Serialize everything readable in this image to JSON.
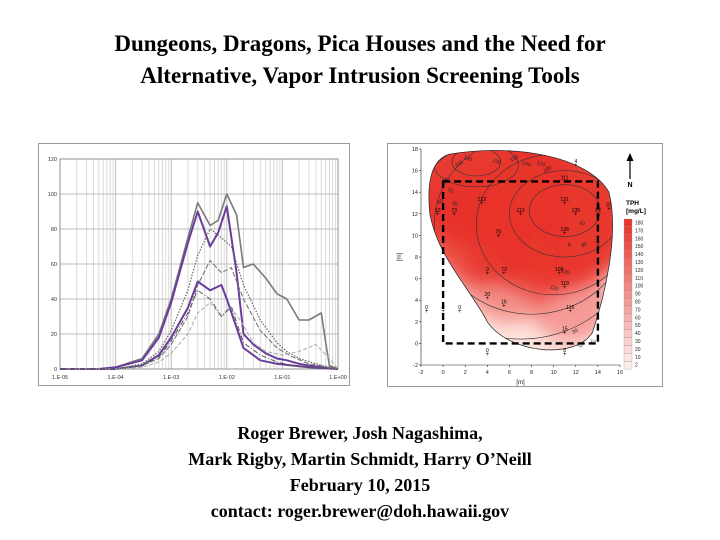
{
  "slide": {
    "title_line1": "Dungeons, Dragons, Pica Houses and the Need for",
    "title_line2": "Alternative, Vapor Intrusion Screening Tools",
    "authors_line1": "Roger Brewer, Josh Nagashima,",
    "authors_line2": "Mark Rigby, Martin Schmidt, Harry O’Neill",
    "date": "February 10, 2015",
    "contact": "contact: roger.brewer@doh.hawaii.gov"
  },
  "chart_data": [
    {
      "type": "line",
      "x_scale": "log",
      "xlim": [
        1e-05,
        1
      ],
      "ylim": [
        0,
        120
      ],
      "x_ticks": [
        "1.E-05",
        "1.E-04",
        "1.E-03",
        "1.E-02",
        "1.E-01",
        "1.E+00"
      ],
      "y_ticks": [
        "0",
        "20",
        "40",
        "60",
        "80",
        "100",
        "120"
      ],
      "grid": true,
      "legend": "none",
      "colors": {
        "purple": "#6a3d9a",
        "gray": "#7a7a7a",
        "light": "#b0b0b0"
      },
      "series": [
        {
          "style": "gray-solid",
          "x": [
            1e-05,
            5e-05,
            0.0001,
            0.0003,
            0.0006,
            0.001,
            0.002,
            0.003,
            0.005,
            0.007,
            0.01,
            0.015,
            0.02,
            0.03,
            0.05,
            0.08,
            0.12,
            0.2,
            0.3,
            0.5,
            0.6,
            0.7,
            1
          ],
          "y": [
            0,
            0,
            1,
            6,
            20,
            40,
            75,
            95,
            82,
            85,
            100,
            88,
            58,
            60,
            52,
            43,
            40,
            28,
            28,
            32,
            15,
            2,
            0
          ]
        },
        {
          "style": "purple-solid",
          "x": [
            1e-05,
            5e-05,
            0.0001,
            0.0003,
            0.0006,
            0.001,
            0.002,
            0.003,
            0.005,
            0.007,
            0.01,
            0.015,
            0.02,
            0.03,
            0.05,
            0.08,
            0.12,
            0.2,
            0.3,
            0.5,
            1
          ],
          "y": [
            0,
            0,
            1,
            5,
            18,
            38,
            72,
            90,
            70,
            78,
            93,
            55,
            20,
            14,
            9,
            6,
            5,
            3,
            2,
            1,
            0
          ]
        },
        {
          "style": "purple-solid",
          "x": [
            1e-05,
            0.0001,
            0.0003,
            0.0006,
            0.001,
            0.002,
            0.003,
            0.005,
            0.008,
            0.01,
            0.02,
            0.04,
            0.08,
            0.15,
            0.3,
            1
          ],
          "y": [
            0,
            0,
            2,
            8,
            18,
            35,
            50,
            45,
            48,
            40,
            12,
            5,
            3,
            2,
            1,
            0
          ]
        },
        {
          "style": "gray-dotted",
          "x": [
            1e-05,
            0.0001,
            0.0003,
            0.0006,
            0.001,
            0.002,
            0.003,
            0.005,
            0.008,
            0.012,
            0.02,
            0.04,
            0.08,
            0.12,
            0.2,
            0.4,
            0.7,
            1
          ],
          "y": [
            0,
            0,
            3,
            10,
            22,
            45,
            65,
            80,
            75,
            70,
            48,
            28,
            15,
            10,
            6,
            3,
            1,
            0
          ]
        },
        {
          "style": "gray-dashed",
          "x": [
            1e-05,
            0.0001,
            0.0003,
            0.0006,
            0.001,
            0.002,
            0.003,
            0.005,
            0.008,
            0.012,
            0.02,
            0.04,
            0.08,
            0.15,
            0.3,
            1
          ],
          "y": [
            0,
            0,
            2,
            6,
            14,
            30,
            48,
            62,
            55,
            58,
            40,
            22,
            12,
            7,
            3,
            0
          ]
        },
        {
          "style": "light-dashed",
          "x": [
            1e-05,
            0.0001,
            0.0003,
            0.0006,
            0.001,
            0.002,
            0.003,
            0.005,
            0.008,
            0.012,
            0.02,
            0.03,
            0.05,
            0.1,
            0.2,
            0.4,
            0.7,
            1
          ],
          "y": [
            0,
            0,
            1,
            4,
            9,
            20,
            32,
            38,
            30,
            35,
            25,
            15,
            10,
            8,
            10,
            14,
            6,
            0
          ]
        },
        {
          "style": "gray-dashdot",
          "x": [
            1e-05,
            0.0001,
            0.0003,
            0.0006,
            0.001,
            0.002,
            0.003,
            0.005,
            0.008,
            0.012,
            0.02,
            0.04,
            0.08,
            0.15,
            0.3,
            1
          ],
          "y": [
            0,
            0,
            2,
            7,
            16,
            32,
            45,
            40,
            30,
            36,
            15,
            8,
            4,
            2,
            1,
            0
          ]
        }
      ]
    },
    {
      "type": "heatmap",
      "xlabel": "[m]",
      "ylabel": "[m]",
      "xlim": [
        -2,
        16
      ],
      "ylim": [
        -2,
        18
      ],
      "x_ticks": [
        "-2",
        "0",
        "2",
        "4",
        "6",
        "8",
        "10",
        "12",
        "14",
        "16"
      ],
      "y_ticks": [
        "-2",
        "0",
        "2",
        "4",
        "6",
        "8",
        "10",
        "12",
        "14",
        "16",
        "18"
      ],
      "legend_title_1": "TPH",
      "legend_title_2": "[mg/L]",
      "north_label": "N",
      "legend_values": [
        "180",
        "170",
        "160",
        "150",
        "140",
        "130",
        "120",
        "110",
        "100",
        "90",
        "80",
        "70",
        "60",
        "50",
        "40",
        "30",
        "20",
        "10",
        "2"
      ],
      "colors": {
        "high": "#e8342c",
        "low": "#fde4de",
        "boundary": "#222222"
      },
      "hot_spots": [
        {
          "x": 3,
          "y": 16.8,
          "value": 180
        },
        {
          "x": 11,
          "y": 12.4,
          "value": 160
        },
        {
          "x": 9,
          "y": 11,
          "value": 140
        },
        {
          "x": 5,
          "y": 11.5,
          "value": 120
        },
        {
          "x": 2.5,
          "y": 10,
          "value": 90
        },
        {
          "x": 6,
          "y": 6,
          "value": 60
        },
        {
          "x": 11.5,
          "y": 3.5,
          "value": 40
        },
        {
          "x": 13,
          "y": 12,
          "value": 70
        }
      ],
      "contour_labels": [
        "110",
        "120",
        "130",
        "150",
        "140",
        "120",
        "100",
        "90",
        "70",
        "50",
        "30",
        "10",
        "30",
        "120",
        "110",
        "20",
        "30",
        "10",
        "8"
      ],
      "samples": [
        {
          "x": 12,
          "y": 16.5,
          "value": "4"
        },
        {
          "x": 11,
          "y": 15,
          "value": "111"
        },
        {
          "x": 3.5,
          "y": 13,
          "value": "122"
        },
        {
          "x": 11,
          "y": 13,
          "value": "131"
        },
        {
          "x": 1,
          "y": 12,
          "value": "73"
        },
        {
          "x": 7,
          "y": 12,
          "value": "112"
        },
        {
          "x": 12,
          "y": 12,
          "value": "135"
        },
        {
          "x": 14,
          "y": 12,
          "value": "27"
        },
        {
          "x": 15,
          "y": 12.5,
          "value": "37"
        },
        {
          "x": 5,
          "y": 10,
          "value": "70"
        },
        {
          "x": 11,
          "y": 10.2,
          "value": "126"
        },
        {
          "x": -0.5,
          "y": 12,
          "value": "10"
        },
        {
          "x": 4,
          "y": 6.5,
          "value": "0"
        },
        {
          "x": 5.5,
          "y": 6.5,
          "value": "73"
        },
        {
          "x": 10.5,
          "y": 6.5,
          "value": "109"
        },
        {
          "x": 11,
          "y": 5.2,
          "value": "119"
        },
        {
          "x": 4,
          "y": 4.2,
          "value": "20"
        },
        {
          "x": 5.5,
          "y": 3.5,
          "value": "16"
        },
        {
          "x": 11.5,
          "y": 3,
          "value": "116"
        },
        {
          "x": -1.5,
          "y": 3,
          "value": "0"
        },
        {
          "x": 0,
          "y": 3,
          "value": "0"
        },
        {
          "x": 1.5,
          "y": 3,
          "value": "0"
        },
        {
          "x": 11,
          "y": 1,
          "value": "15"
        },
        {
          "x": 4,
          "y": -1,
          "value": "0"
        },
        {
          "x": 11,
          "y": -1,
          "value": "8"
        },
        {
          "x": 14,
          "y": 9,
          "value": "0"
        }
      ],
      "survey_box": {
        "x0": 0,
        "y0": 0,
        "x1": 14,
        "y1": 15
      }
    }
  ]
}
